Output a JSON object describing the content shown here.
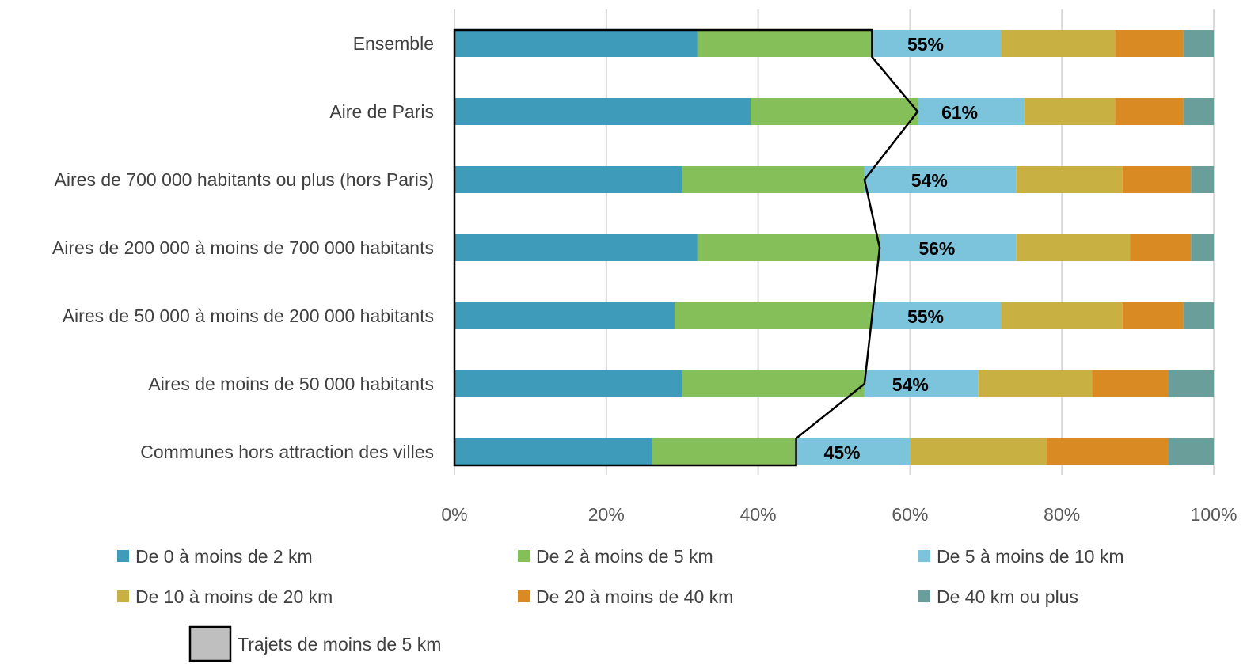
{
  "chart_data": {
    "type": "bar",
    "orientation": "horizontal",
    "stacked": true,
    "categories": [
      "Ensemble",
      "Aire de Paris",
      "Aires de 700 000 habitants ou plus (hors Paris)",
      "Aires de 200 000 à moins de 700 000 habitants",
      "Aires de 50 000 à moins de 200 000 habitants",
      "Aires de moins de 50 000 habitants",
      "Communes hors attraction des villes"
    ],
    "series": [
      {
        "name": "De 0 à moins de 2 km",
        "color": "#3E9BBA",
        "values": [
          32,
          39,
          30,
          32,
          29,
          30,
          26
        ]
      },
      {
        "name": "De 2 à moins de 5 km",
        "color": "#84BF5A",
        "values": [
          23,
          22,
          24,
          24,
          26,
          24,
          19
        ]
      },
      {
        "name": "De 5 à moins de 10 km",
        "color": "#7CC4DC",
        "values": [
          17,
          14,
          20,
          18,
          17,
          15,
          15
        ]
      },
      {
        "name": "De 10 à moins de 20 km",
        "color": "#C9B043",
        "values": [
          15,
          12,
          14,
          15,
          16,
          15,
          18
        ]
      },
      {
        "name": "De 20 à moins de 40 km",
        "color": "#D98A22",
        "values": [
          9,
          9,
          9,
          8,
          8,
          10,
          16
        ]
      },
      {
        "name": "De 40 km ou plus",
        "color": "#6A9E9A",
        "values": [
          4,
          4,
          3,
          3,
          4,
          6,
          6
        ]
      }
    ],
    "annotations": [
      "55%",
      "61%",
      "54%",
      "56%",
      "55%",
      "54%",
      "45%"
    ],
    "outline_series": {
      "name": "Trajets de moins de 5 km",
      "values": [
        55,
        61,
        54,
        56,
        55,
        54,
        45
      ]
    },
    "xlim": [
      0,
      100
    ],
    "xticks": [
      "0%",
      "20%",
      "40%",
      "60%",
      "80%",
      "100%"
    ],
    "grid": true,
    "legend_position": "bottom",
    "title": "",
    "xlabel": "",
    "ylabel": ""
  }
}
